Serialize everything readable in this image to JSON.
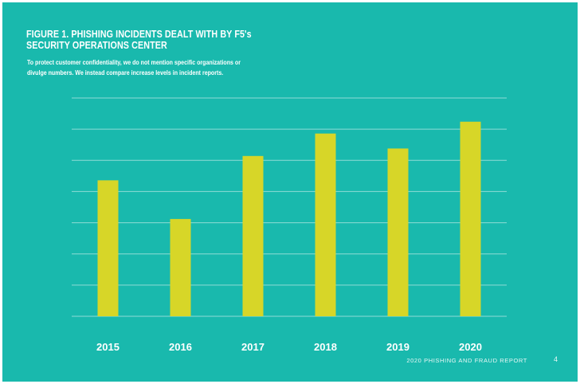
{
  "header": {
    "title_line1": "FIGURE 1. PHISHING INCIDENTS DEALT WITH BY F5's",
    "title_line2": "SECURITY OPERATIONS CENTER",
    "subtitle_line1": "To protect customer confidentiality, we do not mention specific organizations or",
    "subtitle_line2": "divulge numbers. We instead compare increase levels in incident reports."
  },
  "footer": {
    "report_name": "2020 PHISHING AND FRAUD REPORT",
    "page_number": "4"
  },
  "colors": {
    "background": "#19b9ad",
    "bar": "#d7d628",
    "gridline": "#8fdcd6",
    "text": "#ffffff"
  },
  "chart_data": {
    "type": "bar",
    "title": "FIGURE 1. PHISHING INCIDENTS DEALT WITH BY F5's SECURITY OPERATIONS CENTER",
    "xlabel": "",
    "ylabel": "",
    "categories": [
      "2015",
      "2016",
      "2017",
      "2018",
      "2019",
      "2020"
    ],
    "values": [
      4.36,
      3.12,
      5.14,
      5.86,
      5.38,
      6.24
    ],
    "ylim": [
      0,
      7
    ],
    "grid": true,
    "y_tick_labels_shown": false
  }
}
